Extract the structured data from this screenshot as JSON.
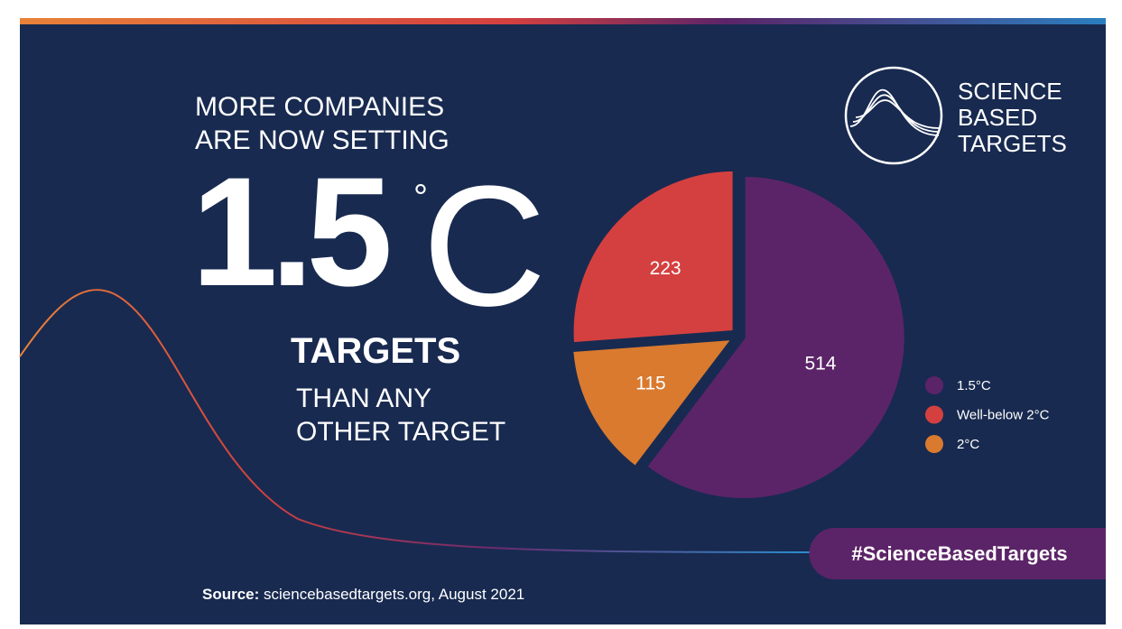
{
  "header": {
    "line1": "MORE COMPANIES",
    "line2": "ARE NOW SETTING",
    "number": "1.5",
    "degree": "°",
    "unit": "C",
    "line3": "TARGETS",
    "line4": "THAN ANY",
    "line5": "OTHER TARGET"
  },
  "logo": {
    "line1": "SCIENCE",
    "line2": "BASED",
    "line3": "TARGETS"
  },
  "hashtag": "#ScienceBasedTargets",
  "source": {
    "label": "Source:",
    "text": "sciencebasedtargets.org, August 2021"
  },
  "chart_data": {
    "type": "pie",
    "categories": [
      "1.5°C",
      "2°C",
      "Well-below 2°C"
    ],
    "values": [
      514,
      115,
      223
    ],
    "colors": [
      "#5c2468",
      "#d97a2f",
      "#d4403f"
    ],
    "legend_order": [
      0,
      2,
      1
    ]
  }
}
